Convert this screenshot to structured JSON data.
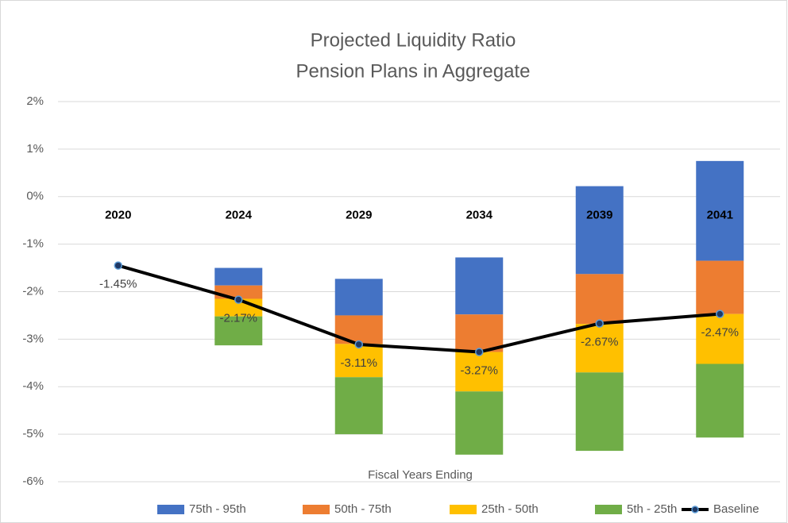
{
  "chart_data": {
    "type": "floating-bar-line",
    "title": "Projected Liquidity Ratio",
    "subtitle": "Pension Plans in Aggregate",
    "x_label": "Fiscal Years Ending",
    "categories": [
      "2020",
      "2024",
      "2029",
      "2034",
      "2039",
      "2041"
    ],
    "ylim": [
      -6,
      2
    ],
    "yticks": [
      {
        "value": 2,
        "label": "2%"
      },
      {
        "value": 1,
        "label": "1%"
      },
      {
        "value": 0,
        "label": "0%"
      },
      {
        "value": -1,
        "label": "-1%"
      },
      {
        "value": -2,
        "label": "-2%"
      },
      {
        "value": -3,
        "label": "-3%"
      },
      {
        "value": -4,
        "label": "-4%"
      },
      {
        "value": -5,
        "label": "-5%"
      },
      {
        "value": -6,
        "label": "-6%"
      }
    ],
    "grid": true,
    "legend": "bottom",
    "series": [
      {
        "name": "75th - 95th",
        "color": "#4472c4",
        "values": [
          null,
          [
            -1.87,
            -1.5
          ],
          [
            -2.5,
            -1.73
          ],
          [
            -2.48,
            -1.28
          ],
          [
            -1.63,
            0.22
          ],
          [
            -1.35,
            0.75
          ]
        ]
      },
      {
        "name": "50th - 75th",
        "color": "#ed7d31",
        "values": [
          null,
          [
            -2.15,
            -1.87
          ],
          [
            -3.1,
            -2.5
          ],
          [
            -3.27,
            -2.48
          ],
          [
            -2.68,
            -1.63
          ],
          [
            -2.47,
            -1.35
          ]
        ]
      },
      {
        "name": "25th - 50th",
        "color": "#ffc000",
        "values": [
          null,
          [
            -2.52,
            -2.15
          ],
          [
            -3.8,
            -3.1
          ],
          [
            -4.1,
            -3.27
          ],
          [
            -3.7,
            -2.68
          ],
          [
            -3.52,
            -2.47
          ]
        ]
      },
      {
        "name": "5th - 25th",
        "color": "#70ad47",
        "values": [
          null,
          [
            -3.13,
            -2.52
          ],
          [
            -5.0,
            -3.8
          ],
          [
            -5.43,
            -4.1
          ],
          [
            -5.35,
            -3.7
          ],
          [
            -5.07,
            -3.52
          ]
        ]
      },
      {
        "name": "Baseline",
        "color": "#000000",
        "type": "line",
        "values": [
          -1.45,
          -2.17,
          -3.11,
          -3.27,
          -2.67,
          -2.47
        ],
        "value_labels": [
          "-1.45%",
          "-2.17%",
          "-3.11%",
          "-3.27%",
          "-2.67%",
          "-2.47%"
        ]
      }
    ]
  }
}
